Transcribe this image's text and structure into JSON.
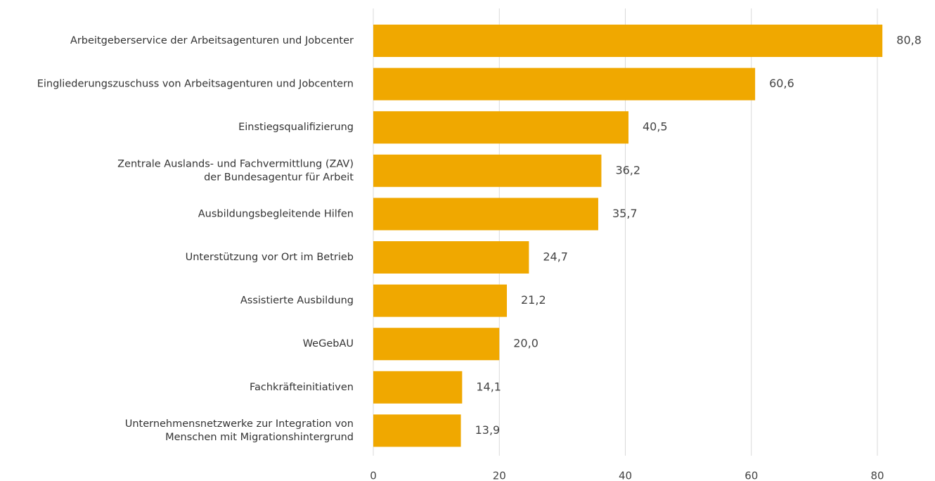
{
  "chart_data": {
    "type": "barh",
    "categories": [
      "Arbeitgeberservice der Arbeitsagenturen und Jobcenter",
      "Eingliederungszuschuss von Arbeitsagenturen und Jobcentern",
      "Einstiegsqualifizierung",
      "Zentrale Auslands- und Fachvermittlung (ZAV)\nder Bundesagentur für Arbeit",
      "Ausbildungsbegleitende Hilfen",
      "Unterstützung vor Ort im Betrieb",
      "Assistierte Ausbildung",
      "WeGebAU",
      "Fachkräfteinitiativen",
      "Unternehmensnetzwerke zur Integration von\nMenschen mit Migrationshintergrund"
    ],
    "values": [
      80.8,
      60.6,
      40.5,
      36.2,
      35.7,
      24.7,
      21.2,
      20.0,
      14.1,
      13.9
    ],
    "value_labels": [
      "80,8",
      "60,6",
      "40,5",
      "36,2",
      "35,7",
      "24,7",
      "21,2",
      "20,0",
      "14,1",
      "13,9"
    ],
    "color": "#f0a800",
    "xlim": [
      0,
      80
    ],
    "xticks": [
      0,
      20,
      40,
      60,
      80
    ],
    "grid": true
  }
}
